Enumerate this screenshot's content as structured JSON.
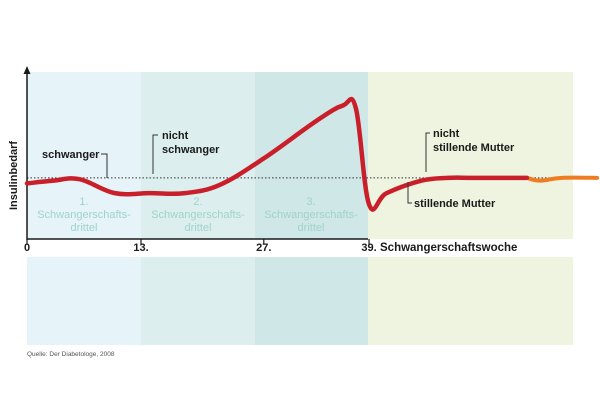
{
  "colors": {
    "trim1": "#e6f3f8",
    "trim2": "#dcefee",
    "trim3": "#cfe7e6",
    "postpartum": "#eef4e0",
    "line_main": "#c91f2a",
    "line_nursing": "#ee7d22",
    "triLabel": "#9fd3cc"
  },
  "chart_data": {
    "type": "line",
    "ylabel": "Insulinbedarf",
    "xlabel": "Schwangerschaftswoche",
    "x_ticks": [
      {
        "value": 0,
        "label": "0"
      },
      {
        "value": 13,
        "label": "13."
      },
      {
        "value": 27,
        "label": "27."
      },
      {
        "value": 39,
        "label": "39."
      }
    ],
    "x_range": [
      0,
      65
    ],
    "y_range": [
      0,
      100
    ],
    "grid": false,
    "baseline": 44,
    "trimesters": [
      {
        "line1": "1.",
        "line2": "Schwangerschafts-",
        "line3": "drittel"
      },
      {
        "line1": "2.",
        "line2": "Schwangerschafts-",
        "line3": "drittel"
      },
      {
        "line1": "3.",
        "line2": "Schwangerschafts-",
        "line3": "drittel"
      }
    ],
    "series": [
      {
        "name": "nicht stillende Mutter",
        "x": [
          0,
          3,
          6,
          10,
          14,
          18,
          22,
          27,
          33,
          36,
          37.5,
          39,
          41,
          45,
          48,
          51,
          57
        ],
        "values": [
          40,
          42,
          43,
          33,
          33,
          33,
          39,
          58,
          85,
          96,
          94,
          25,
          33,
          42,
          44,
          44,
          44
        ]
      },
      {
        "name": "stillende Mutter",
        "x": [
          57,
          58.5,
          61,
          65
        ],
        "values": [
          44,
          42,
          44,
          44
        ]
      }
    ],
    "annotations": {
      "schwanger": "schwanger",
      "nicht_schwanger_1": "nicht",
      "nicht_schwanger_2": "schwanger",
      "nicht_stillend_1": "nicht",
      "nicht_stillend_2": "stillende Mutter",
      "stillend": "stillende Mutter"
    }
  },
  "source": "Quelle: Der Diabetologe, 2008"
}
